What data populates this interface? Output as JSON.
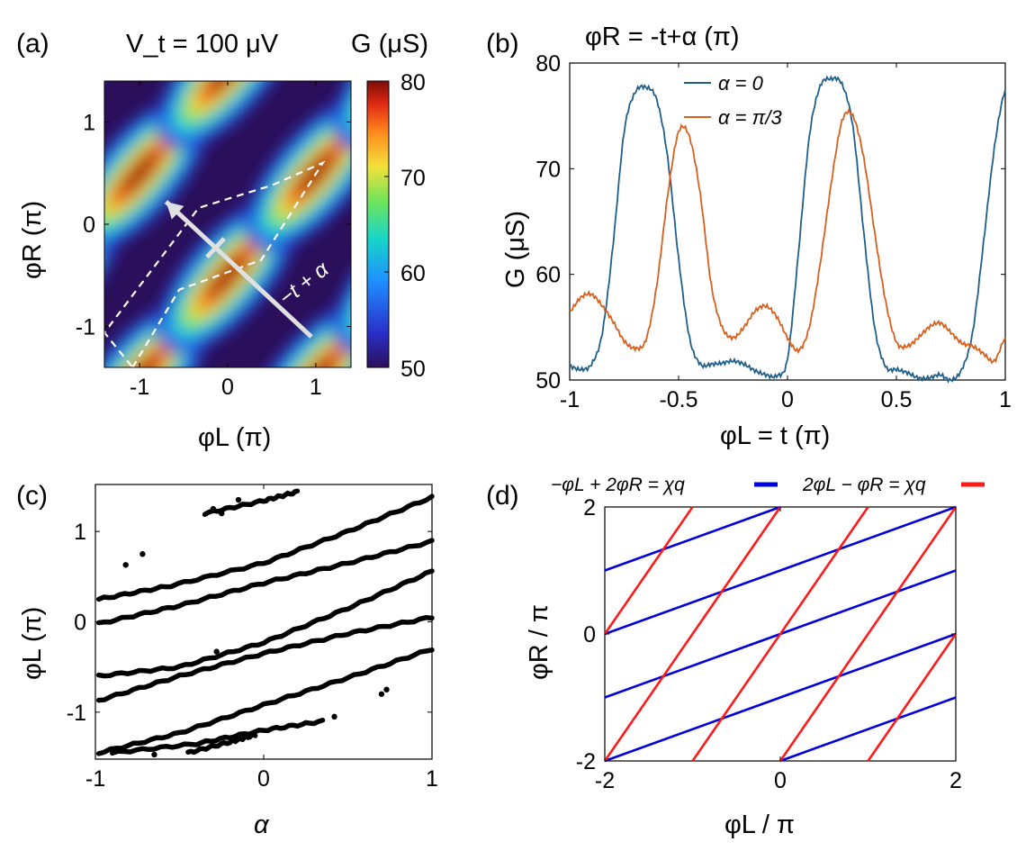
{
  "panels": {
    "a": {
      "label": "(a)"
    },
    "b": {
      "label": "(b)"
    },
    "c": {
      "label": "(c)"
    },
    "d": {
      "label": "(d)"
    }
  },
  "annotation_a": {
    "arrow_label": "−t + α"
  },
  "chart_data": [
    {
      "panel": "a",
      "type": "heatmap",
      "title": "V_t = 100 μV",
      "xlabel": "φL (π)",
      "ylabel": "φR (π)",
      "xlim": [
        -1.4,
        1.4
      ],
      "ylim": [
        -1.4,
        1.4
      ],
      "xticks": [
        -1,
        0,
        1
      ],
      "yticks": [
        -1,
        0,
        1
      ],
      "colorbar": {
        "label": "G (μS)",
        "range": [
          50,
          80
        ],
        "ticks": [
          50,
          60,
          70,
          80
        ],
        "colormap": "jet"
      },
      "maxima_along_lines": "φR ≈ φL − 0.5 + 2k (period 2 in both axes)",
      "overlays": [
        {
          "kind": "dashed-polygon",
          "color": "#ffffff",
          "points": [
            [
              -1.08,
              -1.4
            ],
            [
              -0.55,
              -0.64
            ],
            [
              0.38,
              -0.35
            ],
            [
              1.08,
              0.6
            ],
            [
              0.5,
              0.38
            ],
            [
              -0.33,
              0.16
            ],
            [
              -1.4,
              -1.06
            ]
          ]
        },
        {
          "kind": "line-with-arrow",
          "color": "#e0e0e0",
          "from": [
            0.95,
            -1.1
          ],
          "to": [
            -0.7,
            0.22
          ]
        }
      ]
    },
    {
      "panel": "b",
      "type": "line",
      "title": "φR = -t+α (π)",
      "xlabel": "φL = t (π)",
      "ylabel": "G (μS)",
      "xlim": [
        -1,
        1
      ],
      "ylim": [
        50,
        80
      ],
      "xticks": [
        -1,
        -0.5,
        0,
        0.5,
        1
      ],
      "yticks": [
        50,
        60,
        70,
        80
      ],
      "legend": "top",
      "series": [
        {
          "name": "α = 0",
          "color": "#1f5f8b",
          "x": [
            -1,
            -0.95,
            -0.9,
            -0.85,
            -0.8,
            -0.75,
            -0.7,
            -0.65,
            -0.6,
            -0.55,
            -0.5,
            -0.45,
            -0.4,
            -0.35,
            -0.3,
            -0.25,
            -0.2,
            -0.15,
            -0.1,
            -0.05,
            0,
            0.05,
            0.1,
            0.15,
            0.2,
            0.25,
            0.3,
            0.35,
            0.4,
            0.45,
            0.5,
            0.55,
            0.6,
            0.65,
            0.7,
            0.75,
            0.8,
            0.85,
            0.9,
            0.95,
            1
          ],
          "y": [
            51.3,
            51.0,
            51.5,
            54.5,
            63.0,
            73.5,
            77.2,
            77.7,
            76.5,
            71.0,
            61.5,
            54.0,
            51.5,
            51.5,
            51.6,
            51.8,
            51.5,
            50.9,
            50.5,
            50.4,
            52.0,
            62.0,
            73.0,
            77.8,
            78.5,
            78.0,
            74.0,
            64.0,
            55.0,
            51.3,
            51.0,
            50.7,
            50.2,
            50.2,
            50.5,
            50.0,
            51.0,
            54.5,
            63.0,
            72.0,
            77.5
          ]
        },
        {
          "name": "α = π/3",
          "color": "#d95f1e",
          "x": [
            -1,
            -0.95,
            -0.9,
            -0.85,
            -0.8,
            -0.75,
            -0.7,
            -0.65,
            -0.6,
            -0.55,
            -0.5,
            -0.45,
            -0.4,
            -0.35,
            -0.3,
            -0.25,
            -0.2,
            -0.15,
            -0.1,
            -0.05,
            0,
            0.05,
            0.1,
            0.15,
            0.2,
            0.25,
            0.3,
            0.35,
            0.4,
            0.45,
            0.5,
            0.55,
            0.6,
            0.65,
            0.7,
            0.75,
            0.8,
            0.85,
            0.9,
            0.95,
            1
          ],
          "y": [
            56.5,
            57.8,
            58.1,
            57.0,
            55.5,
            53.7,
            53.0,
            53.8,
            59.0,
            67.5,
            73.5,
            73.0,
            67.5,
            59.0,
            55.0,
            54.0,
            55.0,
            56.5,
            57.0,
            56.0,
            54.0,
            52.8,
            55.0,
            61.0,
            68.5,
            74.5,
            75.0,
            71.0,
            64.0,
            57.5,
            53.6,
            53.2,
            54.0,
            55.0,
            55.4,
            54.5,
            53.5,
            53.2,
            52.5,
            51.8,
            54.0
          ]
        }
      ]
    },
    {
      "panel": "c",
      "type": "scatter",
      "xlabel": "α",
      "ylabel": "φL (π)",
      "xlim": [
        -1,
        1
      ],
      "ylim": [
        -1.52,
        1.52
      ],
      "xticks": [
        -1,
        0,
        1
      ],
      "yticks": [
        -1,
        0,
        1
      ],
      "color": "#000000",
      "traces": [
        {
          "x": [
            -0.98,
            -0.55,
            0.0,
            0.5,
            1.0
          ],
          "y": [
            0.25,
            0.4,
            0.65,
            1.0,
            1.38
          ]
        },
        {
          "x": [
            -0.98,
            -0.5,
            0.0,
            0.5,
            1.0
          ],
          "y": [
            -0.02,
            0.18,
            0.43,
            0.65,
            0.89
          ]
        },
        {
          "x": [
            -0.98,
            -0.5,
            0.0,
            0.5,
            1.0
          ],
          "y": [
            -0.6,
            -0.5,
            -0.23,
            0.15,
            0.56
          ]
        },
        {
          "x": [
            -0.98,
            -0.5,
            0.0,
            0.5,
            1.0
          ],
          "y": [
            -0.87,
            -0.6,
            -0.35,
            -0.13,
            0.05
          ]
        },
        {
          "x": [
            -0.98,
            -0.5,
            0.0,
            0.5,
            1.0
          ],
          "y": [
            -1.45,
            -1.23,
            -0.92,
            -0.62,
            -0.3
          ]
        },
        {
          "x": [
            -0.35,
            0.0,
            0.2
          ],
          "y": [
            1.2,
            1.34,
            1.44
          ]
        },
        {
          "x": [
            -0.9,
            -0.4,
            0.0,
            0.35
          ],
          "y": [
            -1.45,
            -1.35,
            -1.2,
            -1.1
          ]
        },
        {
          "x": [
            -0.45,
            -0.2,
            -0.05
          ],
          "y": [
            -1.45,
            -1.33,
            -1.25
          ]
        }
      ],
      "stray_points": {
        "x": [
          -0.82,
          -0.72,
          -0.15,
          -0.3,
          -0.65,
          0.42,
          0.7,
          0.73,
          -0.28,
          -0.25
        ],
        "y": [
          0.63,
          0.75,
          1.35,
          1.25,
          -1.47,
          -1.05,
          -0.8,
          -0.75,
          -0.33,
          1.2
        ]
      }
    },
    {
      "panel": "d",
      "type": "line",
      "xlabel": "φL / π",
      "ylabel": "φR / π",
      "xlim": [
        -2,
        2
      ],
      "ylim": [
        -2,
        2
      ],
      "xticks": [
        -2,
        0,
        2
      ],
      "yticks": [
        -2,
        0,
        2
      ],
      "legend": "top",
      "series": [
        {
          "name": "−φL + 2φR = χq",
          "color": "#0000dd",
          "segments": [
            [
              [
                -2,
                -2
              ],
              [
                2,
                0
              ]
            ],
            [
              [
                -2,
                -1
              ],
              [
                2,
                1
              ]
            ],
            [
              [
                -2,
                0
              ],
              [
                2,
                2
              ]
            ],
            [
              [
                -2,
                1
              ],
              [
                0,
                2
              ]
            ],
            [
              [
                0,
                -2
              ],
              [
                2,
                -1
              ]
            ]
          ]
        },
        {
          "name": "2φL − φR = χq",
          "color": "#ff1a1a",
          "segments": [
            [
              [
                -2,
                -2
              ],
              [
                0,
                2
              ]
            ],
            [
              [
                -1,
                -2
              ],
              [
                1,
                2
              ]
            ],
            [
              [
                0,
                -2
              ],
              [
                2,
                2
              ]
            ],
            [
              [
                1,
                -2
              ],
              [
                2,
                0
              ]
            ],
            [
              [
                -2,
                0
              ],
              [
                -1,
                2
              ]
            ]
          ]
        }
      ]
    }
  ]
}
